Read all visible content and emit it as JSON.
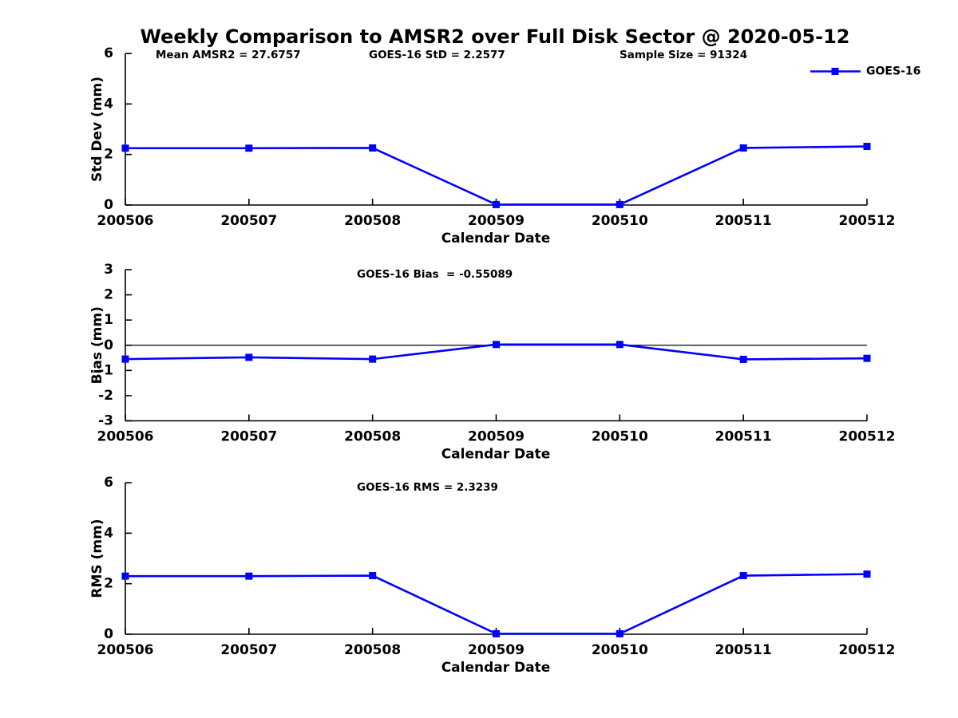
{
  "figure": {
    "title": "Weekly Comparison to AMSR2 over Full Disk Sector @ 2020-05-12",
    "background_color": "#ffffff",
    "text_color": "#000000",
    "line_color": "#0000ff"
  },
  "chart_data": [
    {
      "type": "line",
      "xlabel": "Calendar Date",
      "ylabel": "Std Dev (mm)",
      "categories": [
        "200506",
        "200507",
        "200508",
        "200509",
        "200510",
        "200511",
        "200512"
      ],
      "ylim": [
        0,
        6
      ],
      "yticks": [
        0,
        2,
        4,
        6
      ],
      "grid": false,
      "annotations": [
        "Mean AMSR2 = 27.6757",
        "GOES-16 StD = 2.2577",
        "Sample Size = 91324"
      ],
      "legend": {
        "label": "GOES-16",
        "position": "top-right",
        "color": "#0000ff",
        "marker": "square"
      },
      "series": [
        {
          "name": "GOES-16",
          "color": "#0000ff",
          "marker": "square",
          "values": [
            2.25,
            2.25,
            2.26,
            0.02,
            0.02,
            2.26,
            2.32
          ]
        }
      ]
    },
    {
      "type": "line",
      "xlabel": "Calendar Date",
      "ylabel": "Bias (mm)",
      "categories": [
        "200506",
        "200507",
        "200508",
        "200509",
        "200510",
        "200511",
        "200512"
      ],
      "ylim": [
        -3,
        3
      ],
      "yticks": [
        3,
        2,
        1,
        0,
        -1,
        -2,
        -3
      ],
      "grid": false,
      "zero_line": true,
      "annotations": [
        "GOES-16 Bias  = -0.55089"
      ],
      "series": [
        {
          "name": "GOES-16",
          "color": "#0000ff",
          "marker": "square",
          "values": [
            -0.55,
            -0.48,
            -0.55,
            0.03,
            0.03,
            -0.56,
            -0.52
          ]
        }
      ]
    },
    {
      "type": "line",
      "xlabel": "Calendar Date",
      "ylabel": "RMS (mm)",
      "categories": [
        "200506",
        "200507",
        "200508",
        "200509",
        "200510",
        "200511",
        "200512"
      ],
      "ylim": [
        0,
        6
      ],
      "yticks": [
        0,
        2,
        4,
        6
      ],
      "grid": false,
      "annotations": [
        "GOES-16 RMS = 2.3239"
      ],
      "series": [
        {
          "name": "GOES-16",
          "color": "#0000ff",
          "marker": "square",
          "values": [
            2.3,
            2.3,
            2.32,
            0.02,
            0.02,
            2.32,
            2.38
          ]
        }
      ]
    }
  ]
}
